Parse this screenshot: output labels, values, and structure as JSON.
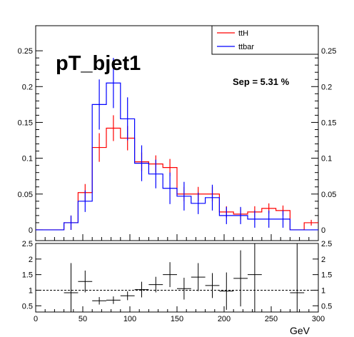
{
  "chart_data": [
    {
      "type": "histogram",
      "title": "pT_bjet1",
      "annotation": "Sep = 5.31 %",
      "xlim": [
        0,
        300
      ],
      "ylim": [
        -0.015,
        0.285
      ],
      "y_ticks": [
        0,
        0.05,
        0.1,
        0.15,
        0.2,
        0.25
      ],
      "y_tick_labels": [
        "0",
        "0.05",
        "0.1",
        "0.15",
        "0.2",
        "0.25"
      ],
      "legend": {
        "placement": "top-right"
      },
      "bin_edges": [
        0,
        15,
        30,
        45,
        60,
        75,
        90,
        105,
        120,
        135,
        150,
        165,
        180,
        195,
        210,
        225,
        240,
        255,
        270,
        285,
        300
      ],
      "series": [
        {
          "name": "ttH",
          "color": "#ff0000",
          "values": [
            0,
            0,
            0.01,
            0.052,
            0.115,
            0.142,
            0.128,
            0.095,
            0.092,
            0.087,
            0.05,
            0.05,
            0.05,
            0.025,
            0.022,
            0.025,
            0.03,
            0.027,
            0,
            0.01
          ],
          "errors": [
            0,
            0,
            0.01,
            0.012,
            0.02,
            0.018,
            0.017,
            0.013,
            0.012,
            0.012,
            0.01,
            0.01,
            0.01,
            0.008,
            0.008,
            0.008,
            0.007,
            0.007,
            0,
            0.004
          ]
        },
        {
          "name": "ttbar",
          "color": "#0000ff",
          "values": [
            0,
            0,
            0.01,
            0.04,
            0.175,
            0.205,
            0.155,
            0.093,
            0.078,
            0.058,
            0.047,
            0.037,
            0.045,
            0.02,
            0.02,
            0.015,
            0.015,
            0.015,
            0,
            0
          ],
          "errors": [
            0,
            0,
            0.01,
            0.015,
            0.035,
            0.035,
            0.03,
            0.025,
            0.02,
            0.022,
            0.02,
            0.015,
            0.018,
            0.012,
            0.012,
            0.012,
            0.012,
            0.012,
            0,
            0
          ]
        }
      ]
    },
    {
      "type": "ratio",
      "xlim": [
        0,
        300
      ],
      "ylim": [
        0.3,
        2.5
      ],
      "x_ticks": [
        0,
        50,
        100,
        150,
        200,
        250,
        300
      ],
      "x_tick_labels": [
        "0",
        "50",
        "100",
        "150",
        "200",
        "250",
        "300"
      ],
      "y_ticks": [
        0.5,
        1,
        1.5,
        2,
        2.5
      ],
      "y_tick_labels": [
        "0.5",
        "1",
        "1.5",
        "2",
        "2.5"
      ],
      "xlabel": "GeV",
      "reference_line": 1,
      "points": [
        {
          "x": 37.5,
          "y": 0.92,
          "err": 0.95
        },
        {
          "x": 52.5,
          "y": 1.28,
          "err": 0.35
        },
        {
          "x": 67.5,
          "y": 0.66,
          "err": 0.12
        },
        {
          "x": 82.5,
          "y": 0.68,
          "err": 0.12
        },
        {
          "x": 97.5,
          "y": 0.82,
          "err": 0.14
        },
        {
          "x": 112.5,
          "y": 1.02,
          "err": 0.25
        },
        {
          "x": 127.5,
          "y": 1.18,
          "err": 0.25
        },
        {
          "x": 142.5,
          "y": 1.5,
          "err": 0.4
        },
        {
          "x": 157.5,
          "y": 1.05,
          "err": 0.35
        },
        {
          "x": 172.5,
          "y": 1.42,
          "err": 0.45
        },
        {
          "x": 187.5,
          "y": 1.15,
          "err": 0.4
        },
        {
          "x": 202.5,
          "y": 0.97,
          "err": 0.6
        },
        {
          "x": 217.5,
          "y": 1.38,
          "err": 0.9
        },
        {
          "x": 232.5,
          "y": 1.5,
          "err": 1.2
        },
        {
          "x": 277.5,
          "y": 0.92,
          "err": 1.6
        }
      ]
    }
  ]
}
